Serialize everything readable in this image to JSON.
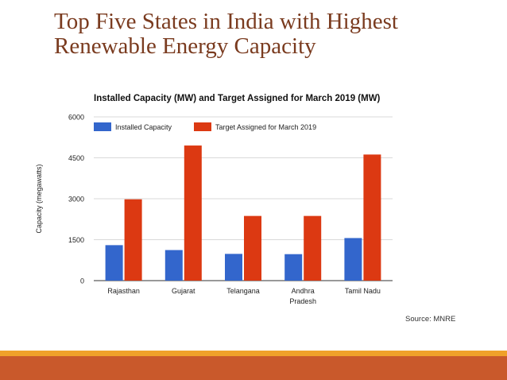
{
  "slide": {
    "title_line1": "Top Five States in India with Highest",
    "title_line2": "Renewable Energy Capacity",
    "source": "Source: MNRE"
  },
  "colors": {
    "installed": "#3366cc",
    "target": "#dc3912",
    "title": "#7a3b1f",
    "band_top": "#f0a12a",
    "band_bottom": "#c9592b"
  },
  "chart_data": {
    "type": "bar",
    "title": "Installed Capacity (MW) and Target Assigned for March 2019 (MW)",
    "xlabel": "",
    "ylabel": "Capacity (megawatts)",
    "categories": [
      "Rajasthan",
      "Gujarat",
      "Telangana",
      "Andhra Pradesh",
      "Tamil Nadu"
    ],
    "category_lines": [
      [
        "Rajasthan"
      ],
      [
        "Gujarat"
      ],
      [
        "Telangana"
      ],
      [
        "Andhra",
        "Pradesh"
      ],
      [
        "Tamil Nadu"
      ]
    ],
    "series": [
      {
        "name": "Installed Capacity",
        "values": [
          1300,
          1120,
          980,
          970,
          1560
        ]
      },
      {
        "name": "Target Assigned for March 2019",
        "values": [
          2980,
          4950,
          2370,
          2370,
          4620
        ]
      }
    ],
    "ylim": [
      0,
      6000
    ],
    "yticks": [
      0,
      1500,
      3000,
      4500,
      6000
    ],
    "grid": true,
    "legend": "top-left"
  }
}
